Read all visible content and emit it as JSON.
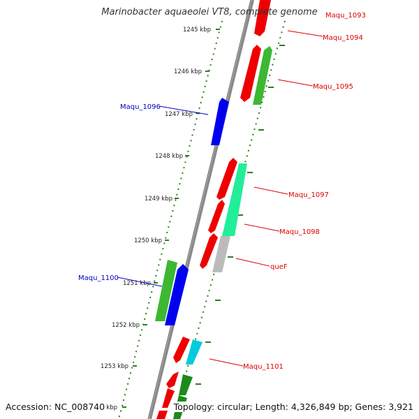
{
  "title": "Marinobacter aquaeolei VT8, complete genome",
  "footer": {
    "accession": "Accession: NC_008740",
    "topology": "Topology: circular; Length: 4,326,849 bp; Genes: 3,921"
  },
  "colors": {
    "forward_label": "#dd0000",
    "reverse_label": "#0000bb",
    "tick": "#2e7d1e",
    "backbone": "#8a8a8a"
  },
  "ticks": [
    "1245 kbp",
    "1246 kbp",
    "1247 kbp",
    "1248 kbp",
    "1249 kbp",
    "1250 kbp",
    "1251 kbp",
    "1252 kbp",
    "1253 kbp",
    "1254 kbp"
  ],
  "gene_labels": [
    {
      "text": "Maqu_1093",
      "color": "#dd0000"
    },
    {
      "text": "Maqu_1094",
      "color": "#dd0000"
    },
    {
      "text": "Maqu_1095",
      "color": "#dd0000"
    },
    {
      "text": "Maqu_1096",
      "color": "#0000bb"
    },
    {
      "text": "Maqu_1097",
      "color": "#dd0000"
    },
    {
      "text": "Maqu_1098",
      "color": "#dd0000"
    },
    {
      "text": "queF",
      "color": "#dd0000"
    },
    {
      "text": "Maqu_1100",
      "color": "#0000bb"
    },
    {
      "text": "Maqu_1101",
      "color": "#dd0000"
    }
  ]
}
